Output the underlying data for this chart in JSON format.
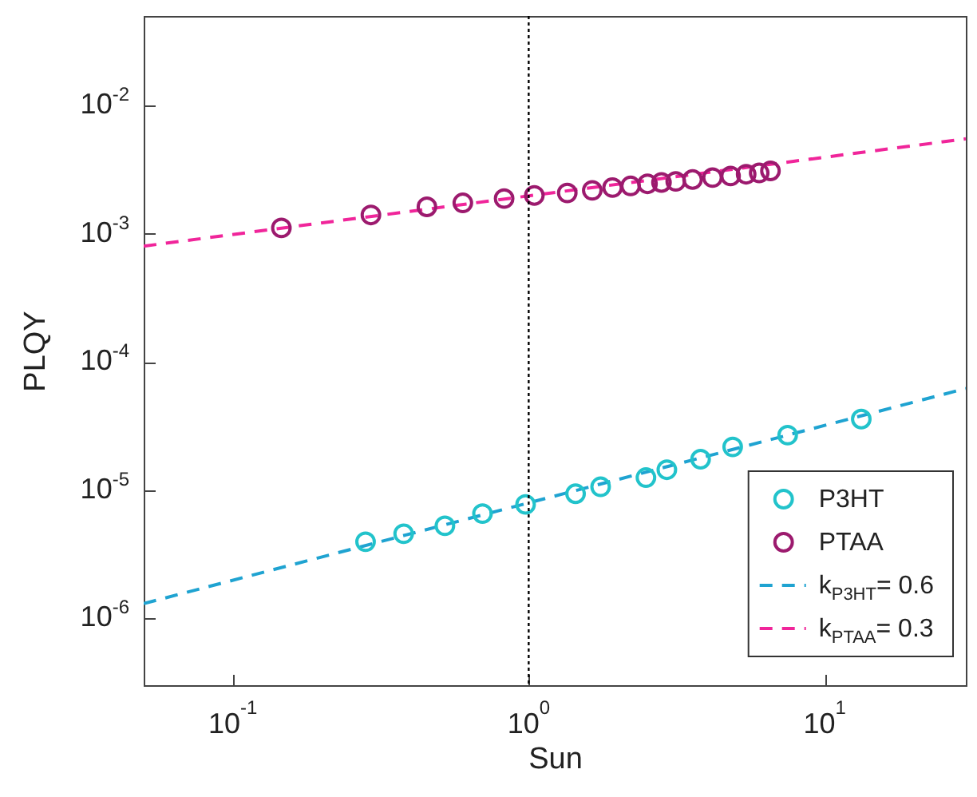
{
  "chart_data": {
    "type": "scatter",
    "xlabel": "Sun",
    "ylabel": "PLQY",
    "log": "xy",
    "xlim": [
      0.05,
      30
    ],
    "ylim": [
      3e-07,
      0.05
    ],
    "xticks": [
      {
        "value": 0.1,
        "label": "10$^{-1}$"
      },
      {
        "value": 1,
        "label": "10$^{0}$"
      },
      {
        "value": 10,
        "label": "10$^{1}$"
      }
    ],
    "yticks": [
      {
        "value": 1e-06,
        "label": "10$^{-6}$"
      },
      {
        "value": 1e-05,
        "label": "10$^{-5}$"
      },
      {
        "value": 0.0001,
        "label": "10$^{-4}$"
      },
      {
        "value": 0.001,
        "label": "10$^{-3}$"
      },
      {
        "value": 0.01,
        "label": "10$^{-2}$"
      }
    ],
    "legend": "bottom right",
    "series": [
      {
        "name": "P3HT",
        "marker": "circle",
        "color": "#22c3cb",
        "x": [
          0.281,
          0.378,
          0.521,
          0.698,
          0.976,
          1.44,
          1.75,
          2.49,
          2.93,
          3.81,
          4.89,
          7.5,
          13.3
        ],
        "values": [
          3.95e-06,
          4.56e-06,
          5.26e-06,
          6.55e-06,
          7.72e-06,
          9.35e-06,
          1.06e-05,
          1.25e-05,
          1.44e-05,
          1.74e-05,
          2.17e-05,
          2.68e-05,
          3.58e-05
        ]
      },
      {
        "name": "PTAA",
        "marker": "circle",
        "color": "#9c1a6e",
        "x": [
          0.146,
          0.293,
          0.453,
          0.599,
          0.826,
          1.045,
          1.35,
          1.64,
          1.92,
          2.21,
          2.52,
          2.81,
          3.14,
          3.58,
          4.18,
          4.81,
          5.43,
          6.01,
          6.56
        ],
        "values": [
          0.00111,
          0.0014,
          0.00162,
          0.00174,
          0.00188,
          0.00199,
          0.00208,
          0.00218,
          0.00229,
          0.00236,
          0.00245,
          0.00251,
          0.00256,
          0.00265,
          0.00274,
          0.00282,
          0.00291,
          0.00298,
          0.00309
        ]
      },
      {
        "name": "k$_{P3HT}$= 0.6",
        "type": "line",
        "line_style": "dashed",
        "color": "#1fa3d1",
        "x": [
          0.05,
          30
        ],
        "values": [
          1.3e-06,
          6.2e-05
        ]
      },
      {
        "name": "k$_{PTAA}$= 0.3",
        "type": "line",
        "line_style": "dashed",
        "color": "#f0259a",
        "x": [
          0.05,
          30
        ],
        "values": [
          0.0008,
          0.0055
        ]
      }
    ],
    "ref_lines": [
      {
        "axis": "x",
        "value": 1,
        "line_style": "dotted",
        "color": "#000000"
      }
    ]
  }
}
